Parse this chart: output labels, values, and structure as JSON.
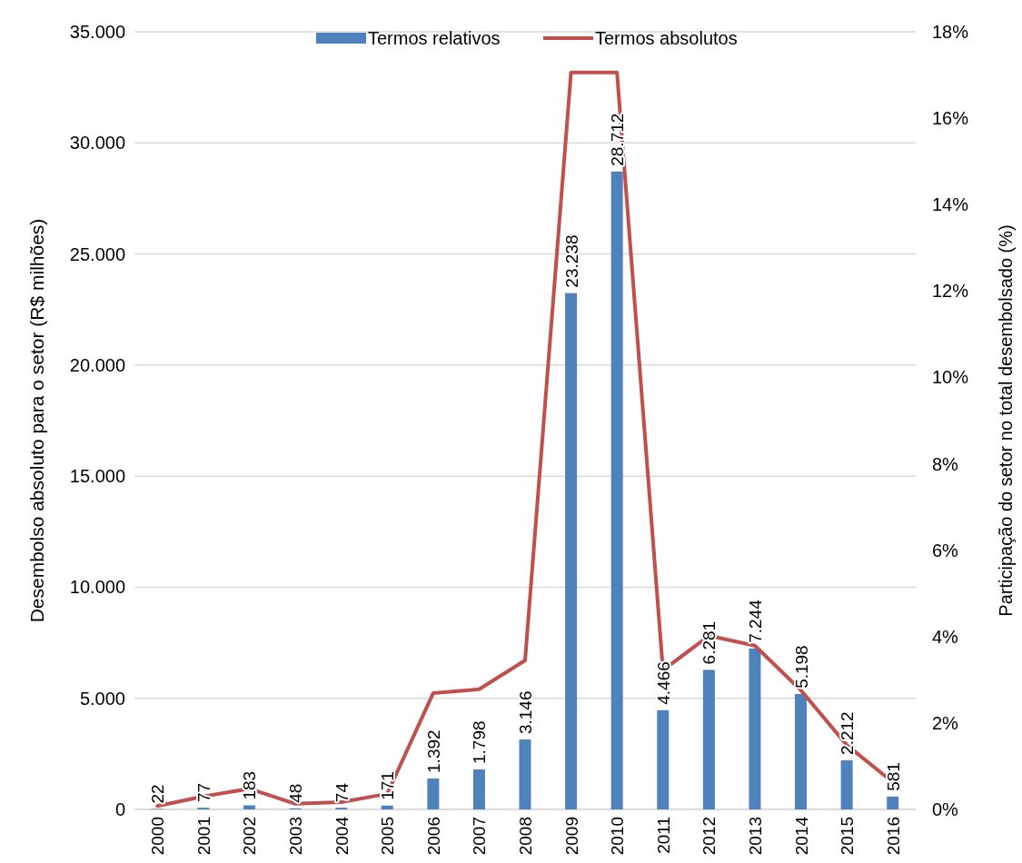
{
  "chart_data": {
    "type": "bar",
    "categories": [
      "2000",
      "2001",
      "2002",
      "2003",
      "2004",
      "2005",
      "2006",
      "2007",
      "2008",
      "2009",
      "2010",
      "2011",
      "2012",
      "2013",
      "2014",
      "2015",
      "2016"
    ],
    "series": [
      {
        "name": "Termos relativos",
        "color": "#4f81bd",
        "values": [
          22,
          77,
          183,
          48,
          74,
          171,
          1392,
          1798,
          3146,
          23238,
          28712,
          4466,
          6281,
          7244,
          5198,
          2212,
          581
        ]
      },
      {
        "name": "Termos absolutos",
        "type": "line",
        "axis": "y2",
        "color": "#c0504d",
        "values": [
          0.08,
          0.3,
          0.48,
          0.13,
          0.17,
          0.36,
          2.69,
          2.78,
          3.45,
          17.06,
          17.06,
          3.22,
          4.02,
          3.79,
          2.76,
          1.49,
          0.63
        ]
      }
    ],
    "ylabel": "Desembolso absoluto para o setor  (R$ milhões)",
    "y2label": "Participação do setor no total desembolsado (%)",
    "ylim": [
      0,
      35000
    ],
    "yticks": [
      {
        "value": 0,
        "label": "0"
      },
      {
        "value": 5000,
        "label": "5.000"
      },
      {
        "value": 10000,
        "label": "10.000"
      },
      {
        "value": 15000,
        "label": "15.000"
      },
      {
        "value": 20000,
        "label": "20.000"
      },
      {
        "value": 25000,
        "label": "25.000"
      },
      {
        "value": 30000,
        "label": "30.000"
      },
      {
        "value": 35000,
        "label": "35.000"
      }
    ],
    "y2lim": [
      0,
      18
    ],
    "y2ticks": [
      {
        "value": 0,
        "label": "0%"
      },
      {
        "value": 2,
        "label": "2%"
      },
      {
        "value": 4,
        "label": "4%"
      },
      {
        "value": 6,
        "label": "6%"
      },
      {
        "value": 8,
        "label": "8%"
      },
      {
        "value": 10,
        "label": "10%"
      },
      {
        "value": 12,
        "label": "12%"
      },
      {
        "value": 14,
        "label": "14%"
      },
      {
        "value": 16,
        "label": "16%"
      },
      {
        "value": 18,
        "label": "18%"
      }
    ],
    "value_labels": [
      "22",
      "77",
      "183",
      "48",
      "74",
      "171",
      "1.392",
      "1.798",
      "3.146",
      "23.238",
      "28.712",
      "4.466",
      "6.281",
      "7.244",
      "5.198",
      "2.212",
      "581"
    ],
    "grid": "y",
    "legend": "top",
    "line_style": "solid",
    "marker": "none"
  }
}
